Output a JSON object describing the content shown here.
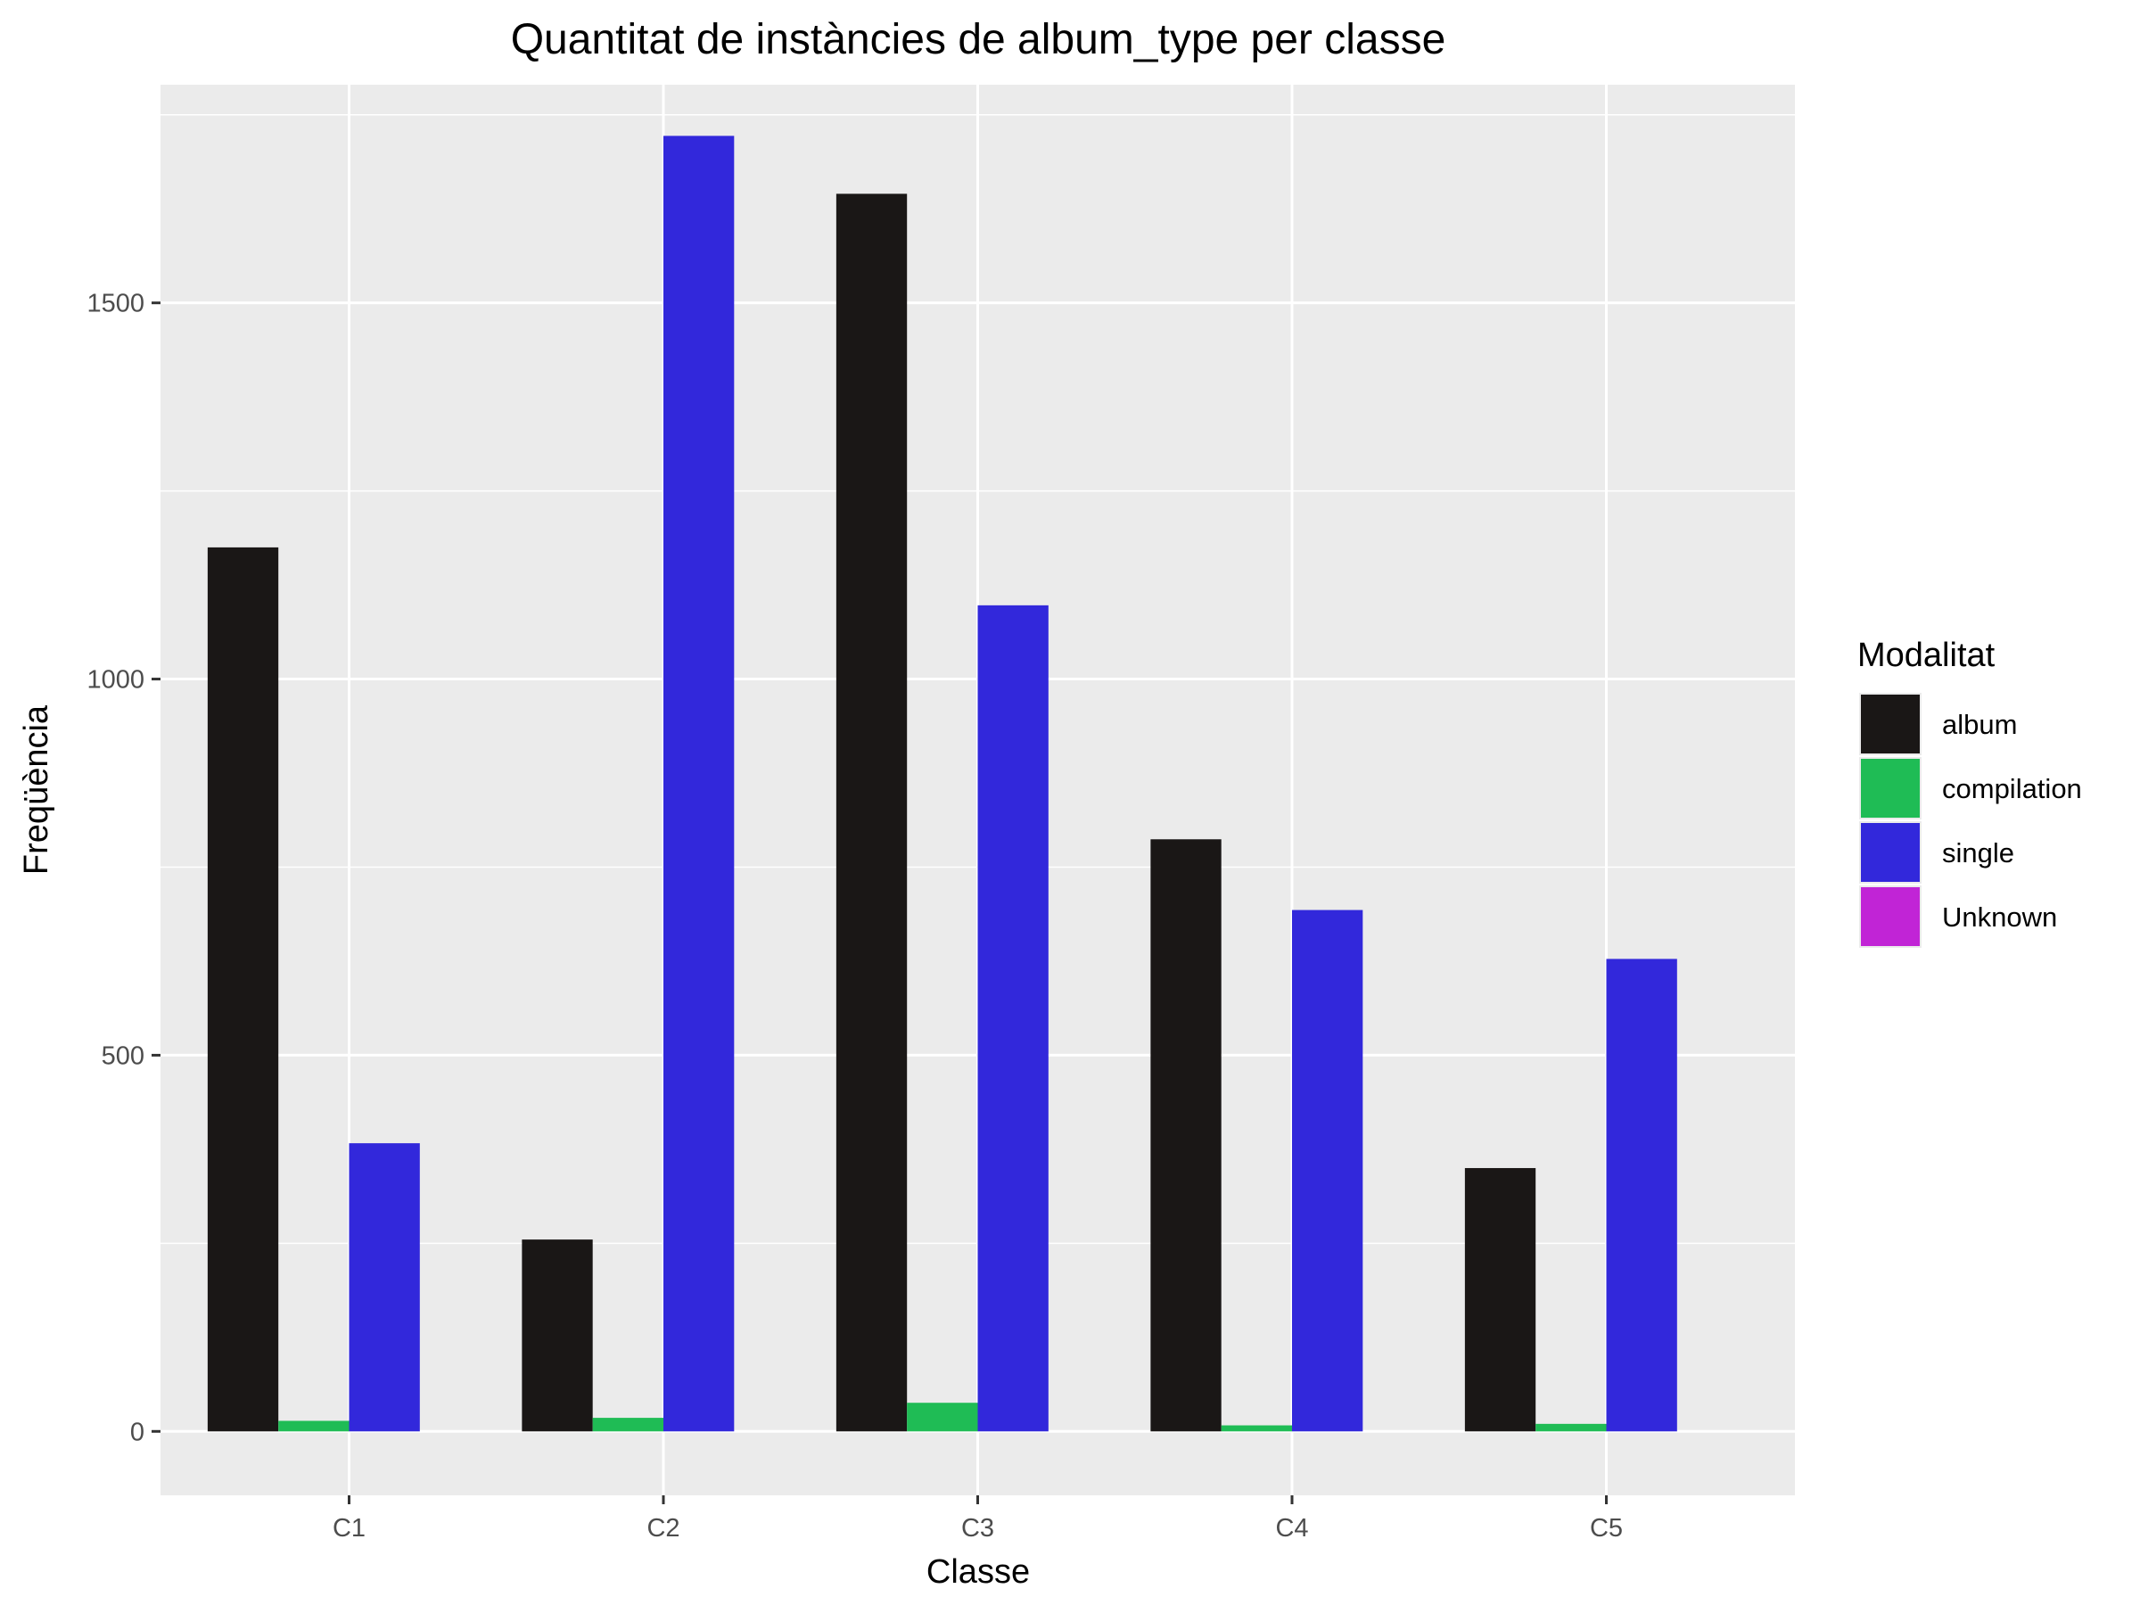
{
  "chart_data": {
    "type": "bar",
    "title": "Quantitat de instàncies de album_type per classe",
    "xlabel": "Classe",
    "ylabel": "Freqüència",
    "categories": [
      "C1",
      "C2",
      "C3",
      "C4",
      "C5"
    ],
    "yticks": [
      0,
      500,
      1000,
      1500
    ],
    "ylim": [
      -85,
      1790
    ],
    "grid": true,
    "legend": {
      "title": "Modalitat",
      "placement": "right"
    },
    "series": [
      {
        "name": "album",
        "color": "#1a1716",
        "values": [
          1175,
          255,
          1645,
          787,
          350
        ]
      },
      {
        "name": "compilation",
        "color": "#1fbc55",
        "values": [
          14,
          18,
          38,
          8,
          10
        ]
      },
      {
        "name": "single",
        "color": "#3228db",
        "values": [
          383,
          1722,
          1098,
          693,
          628
        ]
      },
      {
        "name": "Unknown",
        "color": "#c124d6",
        "values": [
          0,
          0,
          0,
          0,
          0
        ]
      }
    ]
  }
}
